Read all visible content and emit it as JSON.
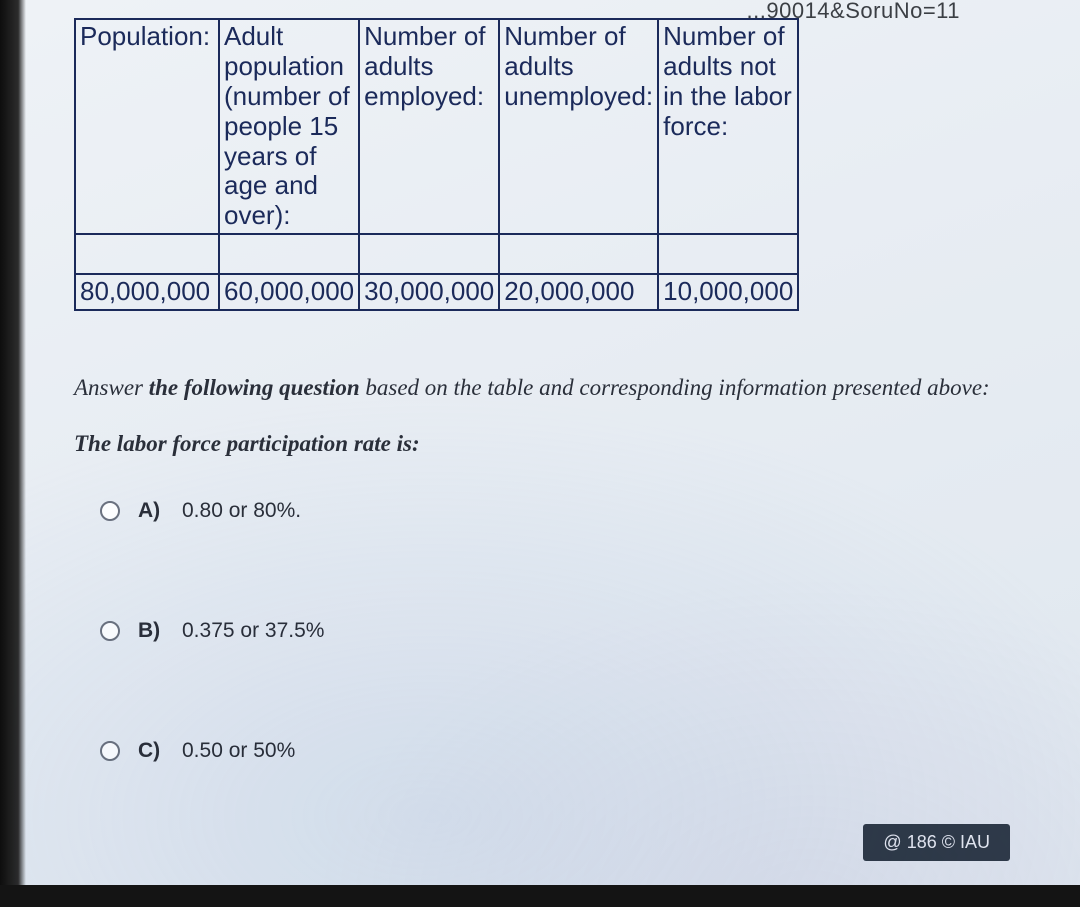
{
  "url_fragment": "...90014&SoruNo=11",
  "table": {
    "border_color": "#1b2a5a",
    "text_color": "#1b2a5a",
    "font_size_pt": 20,
    "headers": [
      "Population:",
      "Adult population (number of people 15 years of age and over):",
      "Number of adults employed:",
      "Number of adults unemployed:",
      "Number of adults not in the labor force:"
    ],
    "values": [
      "80,000,000",
      "60,000,000",
      "30,000,000",
      "20,000,000",
      "10,000,000"
    ]
  },
  "question": {
    "lead_prefix": "Answer ",
    "lead_bold": "the following question",
    "lead_suffix": "  based on the table and corresponding information presented above:",
    "prompt": "The labor force participation rate is:"
  },
  "options": [
    {
      "label": "A)",
      "text": "0.80 or 80%."
    },
    {
      "label": "B)",
      "text": "0.375 or 37.5%"
    },
    {
      "label": "C)",
      "text": "0.50 or 50%"
    }
  ],
  "footer": {
    "text": "@ 186 © IAU"
  },
  "palette": {
    "page_bg_top": "#eef2f6",
    "page_bg_bottom": "#dfe7ef",
    "text": "#2a2f3a",
    "footer_bg": "#2f3b4a",
    "footer_text": "#e8edf3",
    "radio_border": "#6b7280"
  }
}
